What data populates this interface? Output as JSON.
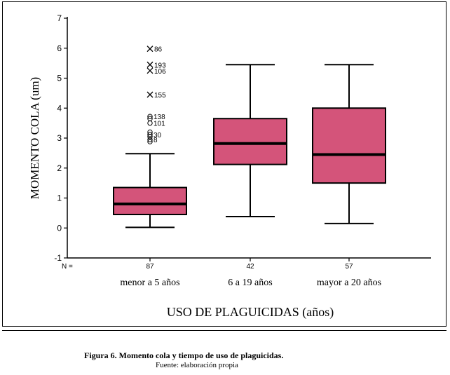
{
  "chart_data": {
    "type": "boxplot",
    "ylabel": "MOMENTO COLA (um)",
    "xlabel": "USO DE PLAGUICIDAS (años)",
    "ylim": [
      -1,
      7
    ],
    "yticks": [
      -1,
      0,
      1,
      2,
      3,
      4,
      5,
      6,
      7
    ],
    "n_prefix": "N =",
    "box_color": "#d4547a",
    "groups": [
      {
        "category": "menor a 5 años",
        "n": "87",
        "whisker_low": 0.02,
        "q1": 0.45,
        "median": 0.8,
        "q3": 1.35,
        "whisker_high": 2.48,
        "outliers": [
          {
            "value": 2.88,
            "label": "",
            "marker": "o"
          },
          {
            "value": 2.95,
            "label": "8",
            "marker": "o"
          },
          {
            "value": 3.05,
            "label": "",
            "marker": "o"
          },
          {
            "value": 3.12,
            "label": "30",
            "marker": "o"
          },
          {
            "value": 3.2,
            "label": "",
            "marker": "o"
          },
          {
            "value": 3.5,
            "label": "101",
            "marker": "o"
          },
          {
            "value": 3.65,
            "label": "",
            "marker": "o"
          },
          {
            "value": 3.72,
            "label": "138",
            "marker": "o"
          }
        ],
        "extremes": [
          {
            "value": 4.45,
            "label": "155",
            "marker": "x"
          },
          {
            "value": 5.25,
            "label": "106",
            "marker": "x"
          },
          {
            "value": 5.45,
            "label": "193",
            "marker": "x"
          },
          {
            "value": 5.98,
            "label": "86",
            "marker": "x"
          }
        ]
      },
      {
        "category": "6 a 19 años",
        "n": "42",
        "whisker_low": 0.38,
        "q1": 2.12,
        "median": 2.82,
        "q3": 3.65,
        "whisker_high": 5.45,
        "outliers": [],
        "extremes": []
      },
      {
        "category": "mayor a 20 años",
        "n": "57",
        "whisker_low": 0.15,
        "q1": 1.5,
        "median": 2.45,
        "q3": 4.0,
        "whisker_high": 5.45,
        "outliers": [],
        "extremes": []
      }
    ]
  },
  "caption": {
    "title": "Figura 6.  Momento cola y tiempo de uso de plaguicidas.",
    "source": "Fuente: elaboración propia"
  }
}
